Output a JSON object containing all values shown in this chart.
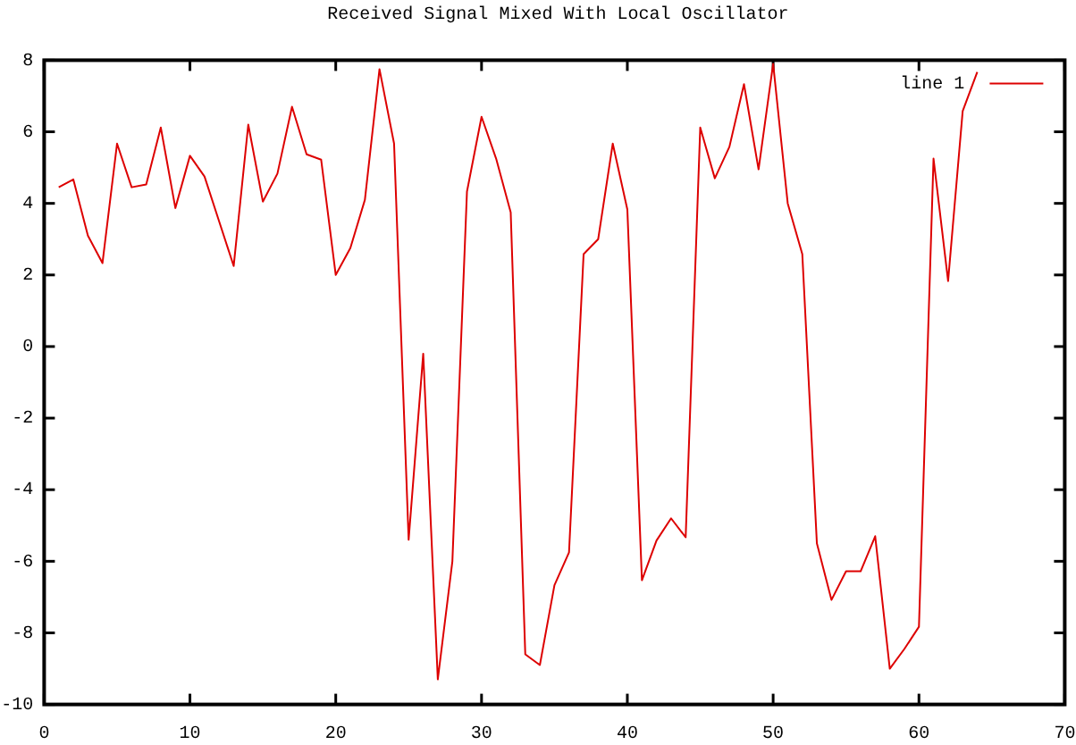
{
  "chart_data": {
    "type": "line",
    "title": "Received Signal Mixed With Local Oscillator",
    "x": [
      1,
      2,
      3,
      4,
      5,
      6,
      7,
      8,
      9,
      10,
      11,
      12,
      13,
      14,
      15,
      16,
      17,
      18,
      19,
      20,
      21,
      22,
      23,
      24,
      25,
      26,
      27,
      28,
      29,
      30,
      31,
      32,
      33,
      34,
      35,
      36,
      37,
      38,
      39,
      40,
      41,
      42,
      43,
      44,
      45,
      46,
      47,
      48,
      49,
      50,
      51,
      52,
      53,
      54,
      55,
      56,
      57,
      58,
      59,
      60,
      61,
      62,
      63,
      64
    ],
    "series": [
      {
        "name": "line 1",
        "color": "#dd0000",
        "values": [
          4.45,
          4.67,
          3.1,
          2.33,
          5.67,
          4.45,
          4.53,
          6.12,
          3.87,
          5.33,
          4.75,
          3.5,
          2.25,
          6.2,
          4.05,
          4.83,
          6.7,
          5.37,
          5.22,
          2.0,
          2.75,
          4.1,
          7.75,
          5.67,
          -5.4,
          -0.2,
          -9.3,
          -6.0,
          4.33,
          6.42,
          5.25,
          3.75,
          -8.6,
          -8.9,
          -6.67,
          -5.75,
          2.58,
          3.0,
          5.67,
          3.83,
          -6.53,
          -5.42,
          -4.8,
          -5.33,
          6.12,
          4.7,
          5.58,
          7.33,
          4.95,
          7.9,
          4.0,
          2.58,
          -5.5,
          -7.08,
          -6.28,
          -6.28,
          -5.3,
          -9.0,
          -8.45,
          -7.83,
          5.25,
          1.83,
          6.58,
          7.67
        ]
      }
    ],
    "xlim": [
      0,
      70
    ],
    "xticks": [
      0,
      10,
      20,
      30,
      40,
      50,
      60,
      70
    ],
    "ylim": [
      -10,
      8
    ],
    "yticks": [
      -10,
      -8,
      -6,
      -4,
      -2,
      0,
      2,
      4,
      6,
      8
    ],
    "legend": "top right",
    "grid": false,
    "marker": "none",
    "line_style": "solid"
  }
}
